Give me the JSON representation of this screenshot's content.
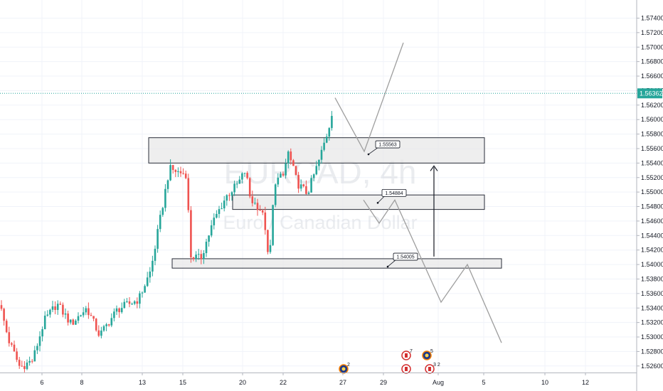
{
  "chart_data": {
    "type": "candlestick",
    "symbol_watermark": "EURCAD, 4h",
    "description_watermark": "Euro / Canadian Dollar",
    "current_price": {
      "value": 1.56362,
      "label": "1.56362",
      "color": "#26a69a"
    },
    "y_axis": {
      "min": 1.525,
      "max": 1.5765,
      "ticks": [
        "1.57400",
        "1.57200",
        "1.57000",
        "1.56800",
        "1.56600",
        "1.56400",
        "1.56200",
        "1.56000",
        "1.55800",
        "1.55600",
        "1.55400",
        "1.55200",
        "1.55000",
        "1.54800",
        "1.54600",
        "1.54400",
        "1.54200",
        "1.54000",
        "1.53800",
        "1.53600",
        "1.53400",
        "1.53200",
        "1.53000",
        "1.52800",
        "1.52600"
      ]
    },
    "x_axis": {
      "ticks": [
        "6",
        "8",
        "13",
        "15",
        "20",
        "22",
        "27",
        "29",
        "Aug",
        "5",
        "10",
        "12"
      ]
    },
    "zones": [
      {
        "low": 1.554,
        "high": 1.5575,
        "label": "1.55563",
        "label_price": 1.5556
      },
      {
        "low": 1.5476,
        "high": 1.5496,
        "label": "1.54884",
        "label_price": 1.5489
      },
      {
        "low": 1.5395,
        "high": 1.5408,
        "label": "1.54005",
        "label_price": 1.5401
      }
    ],
    "projections": [
      {
        "name": "bullish-path",
        "points": [
          [
            1.563,
            0
          ],
          [
            1.5556,
            1
          ],
          [
            1.5706,
            2
          ]
        ]
      },
      {
        "name": "bearish-path",
        "points": [
          [
            1.5489,
            0
          ],
          [
            1.5457,
            1
          ],
          [
            1.5489,
            2
          ],
          [
            1.5348,
            3
          ],
          [
            1.54,
            4
          ],
          [
            1.5292,
            5
          ]
        ]
      }
    ],
    "arrow": {
      "from": 1.5411,
      "to": 1.5536
    },
    "colors": {
      "up": "#26a69a",
      "down": "#ef5350",
      "projection": "#9e9e9e",
      "zone_fill": "#e8e8e8",
      "zone_stroke": "#2a2e39"
    },
    "event_icons": [
      {
        "badge": "2",
        "flag": "eur"
      },
      {
        "badge": "7",
        "flag": "cad"
      },
      {
        "badge": "5",
        "flag": "eur"
      },
      {
        "badge": "3 2",
        "flag": "cad"
      }
    ]
  }
}
